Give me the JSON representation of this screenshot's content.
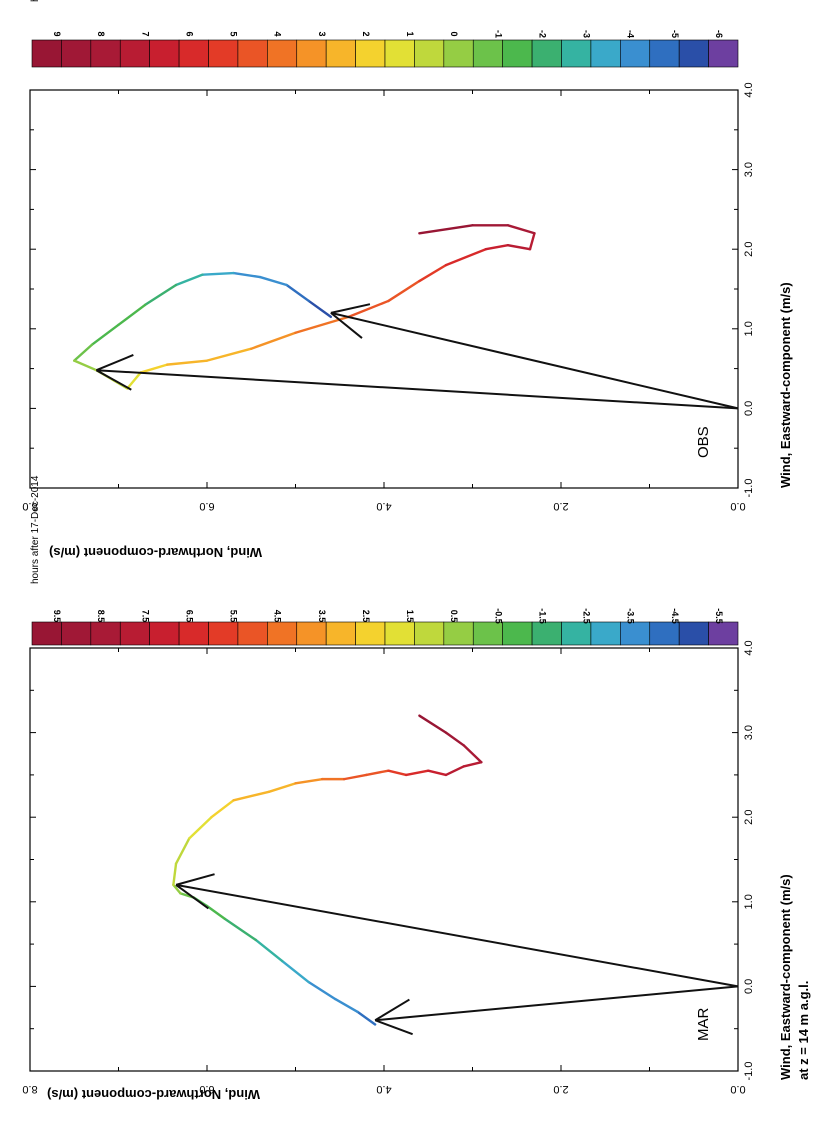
{
  "figure": {
    "xlabel": "Wind, Eastward-component (m/s)",
    "xlabel_note": "at z = 14 m a.g.l.",
    "ylabel": "Wind, Northward-component (m/s)"
  },
  "chart_data": [
    {
      "type": "line",
      "panel": "MAR",
      "title": "hours after 17-Dec-2014",
      "xlabel": "Wind, Eastward-component (m/s)",
      "ylabel": "Wind, Northward-component (m/s)",
      "xlim": [
        -1.0,
        4.0
      ],
      "ylim": [
        0.0,
        8.0
      ],
      "x_ticks": [
        "-1.0",
        "0.0",
        "1.0",
        "2.0",
        "3.0",
        "4.0"
      ],
      "y_ticks": [
        "0.0",
        "2.0",
        "4.0",
        "6.0",
        "8.0"
      ],
      "colorbar_labels": [
        "9.5",
        "8.5",
        "7.5",
        "6.5",
        "5.5",
        "4.5",
        "3.5",
        "2.5",
        "1.5",
        "0.5",
        "-0.5",
        "-1.5",
        "-2.5",
        "-3.5",
        "-4.5",
        "-5.5"
      ],
      "colorbar_range": [
        -5.5,
        9.5
      ],
      "colorbar_cells": 24,
      "hodograph": [
        {
          "u": -0.45,
          "v": 4.1,
          "h": -4.5
        },
        {
          "u": -0.3,
          "v": 4.3,
          "h": -4.0
        },
        {
          "u": -0.15,
          "v": 4.55,
          "h": -3.5
        },
        {
          "u": 0.05,
          "v": 4.85,
          "h": -3.0
        },
        {
          "u": 0.3,
          "v": 5.15,
          "h": -2.5
        },
        {
          "u": 0.55,
          "v": 5.45,
          "h": -2.0
        },
        {
          "u": 0.8,
          "v": 5.8,
          "h": -1.5
        },
        {
          "u": 0.95,
          "v": 6.0,
          "h": -1.0
        },
        {
          "u": 1.05,
          "v": 6.15,
          "h": -0.5
        },
        {
          "u": 1.1,
          "v": 6.3,
          "h": 0.0
        },
        {
          "u": 1.2,
          "v": 6.38,
          "h": 0.5
        },
        {
          "u": 1.45,
          "v": 6.35,
          "h": 1.0
        },
        {
          "u": 1.75,
          "v": 6.2,
          "h": 1.5
        },
        {
          "u": 2.0,
          "v": 5.95,
          "h": 2.0
        },
        {
          "u": 2.2,
          "v": 5.7,
          "h": 2.5
        },
        {
          "u": 2.3,
          "v": 5.3,
          "h": 3.0
        },
        {
          "u": 2.4,
          "v": 5.0,
          "h": 3.5
        },
        {
          "u": 2.45,
          "v": 4.7,
          "h": 4.0
        },
        {
          "u": 2.45,
          "v": 4.45,
          "h": 4.5
        },
        {
          "u": 2.5,
          "v": 4.2,
          "h": 5.0
        },
        {
          "u": 2.55,
          "v": 3.95,
          "h": 5.5
        },
        {
          "u": 2.5,
          "v": 3.75,
          "h": 6.0
        },
        {
          "u": 2.55,
          "v": 3.5,
          "h": 6.5
        },
        {
          "u": 2.5,
          "v": 3.3,
          "h": 7.0
        },
        {
          "u": 2.6,
          "v": 3.1,
          "h": 7.5
        },
        {
          "u": 2.65,
          "v": 2.9,
          "h": 8.0
        },
        {
          "u": 2.85,
          "v": 3.1,
          "h": 8.5
        },
        {
          "u": 3.0,
          "v": 3.3,
          "h": 9.0
        },
        {
          "u": 3.2,
          "v": 3.6,
          "h": 9.5
        }
      ],
      "arrows": [
        {
          "u": -0.4,
          "v": 4.1
        },
        {
          "u": 1.2,
          "v": 6.35
        }
      ]
    },
    {
      "type": "line",
      "panel": "OBS",
      "title": "hours after 17-Dec-2014",
      "xlabel": "Wind, Eastward-component (m/s)",
      "ylabel": "Wind, Northward-component (m/s)",
      "xlim": [
        -1.0,
        4.0
      ],
      "ylim": [
        0.0,
        8.0
      ],
      "x_ticks": [
        "-1.0",
        "0.0",
        "1.0",
        "2.0",
        "3.0",
        "4.0"
      ],
      "y_ticks": [
        "0.0",
        "2.0",
        "4.0",
        "6.0",
        "8.0"
      ],
      "colorbar_labels": [
        "9",
        "8",
        "7",
        "6",
        "5",
        "4",
        "3",
        "2",
        "1",
        "0",
        "-1",
        "-2",
        "-3",
        "-4",
        "-5",
        "-6"
      ],
      "colorbar_range": [
        -6,
        9
      ],
      "colorbar_cells": 24,
      "hodograph": [
        {
          "u": 1.15,
          "v": 4.6,
          "h": -5.5
        },
        {
          "u": 1.35,
          "v": 4.85,
          "h": -5.0
        },
        {
          "u": 1.55,
          "v": 5.1,
          "h": -4.5
        },
        {
          "u": 1.65,
          "v": 5.4,
          "h": -4.0
        },
        {
          "u": 1.7,
          "v": 5.7,
          "h": -3.5
        },
        {
          "u": 1.68,
          "v": 6.05,
          "h": -3.0
        },
        {
          "u": 1.55,
          "v": 6.35,
          "h": -2.5
        },
        {
          "u": 1.3,
          "v": 6.7,
          "h": -2.0
        },
        {
          "u": 1.05,
          "v": 7.0,
          "h": -1.5
        },
        {
          "u": 0.8,
          "v": 7.3,
          "h": -1.0
        },
        {
          "u": 0.6,
          "v": 7.5,
          "h": -0.5
        },
        {
          "u": 0.48,
          "v": 7.25,
          "h": 0.0
        },
        {
          "u": 0.35,
          "v": 7.05,
          "h": 0.5
        },
        {
          "u": 0.25,
          "v": 6.9,
          "h": 1.0
        },
        {
          "u": 0.45,
          "v": 6.75,
          "h": 1.5
        },
        {
          "u": 0.55,
          "v": 6.45,
          "h": 2.0
        },
        {
          "u": 0.6,
          "v": 6.0,
          "h": 2.5
        },
        {
          "u": 0.75,
          "v": 5.5,
          "h": 3.0
        },
        {
          "u": 0.95,
          "v": 5.0,
          "h": 3.5
        },
        {
          "u": 1.15,
          "v": 4.4,
          "h": 4.0
        },
        {
          "u": 1.35,
          "v": 3.95,
          "h": 4.5
        },
        {
          "u": 1.6,
          "v": 3.6,
          "h": 5.0
        },
        {
          "u": 1.8,
          "v": 3.3,
          "h": 5.5
        },
        {
          "u": 2.0,
          "v": 2.85,
          "h": 6.0
        },
        {
          "u": 2.05,
          "v": 2.6,
          "h": 6.5
        },
        {
          "u": 2.0,
          "v": 2.35,
          "h": 7.0
        },
        {
          "u": 2.2,
          "v": 2.3,
          "h": 7.5
        },
        {
          "u": 2.3,
          "v": 2.6,
          "h": 8.0
        },
        {
          "u": 2.3,
          "v": 3.0,
          "h": 8.5
        },
        {
          "u": 2.2,
          "v": 3.6,
          "h": 9.0
        }
      ],
      "arrows": [
        {
          "u": 0.48,
          "v": 7.25
        },
        {
          "u": 1.2,
          "v": 4.6
        }
      ]
    }
  ]
}
